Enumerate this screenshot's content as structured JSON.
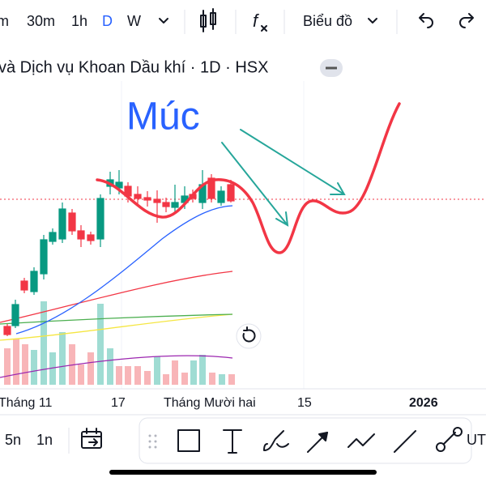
{
  "toolbar": {
    "intervals": [
      "m",
      "30m",
      "1h",
      "D",
      "W"
    ],
    "chart_menu": "Biểu đồ"
  },
  "header": {
    "title": "và Dịch vụ Khoan Dầu khí · 1D · HSX"
  },
  "chart": {
    "annotation": "Múc",
    "x_labels": [
      "Tháng 11",
      "17",
      "Tháng Mười hai",
      "15",
      "2026"
    ]
  },
  "bottom": {
    "ranges": [
      "5n",
      "1n"
    ],
    "more": "UT"
  }
}
